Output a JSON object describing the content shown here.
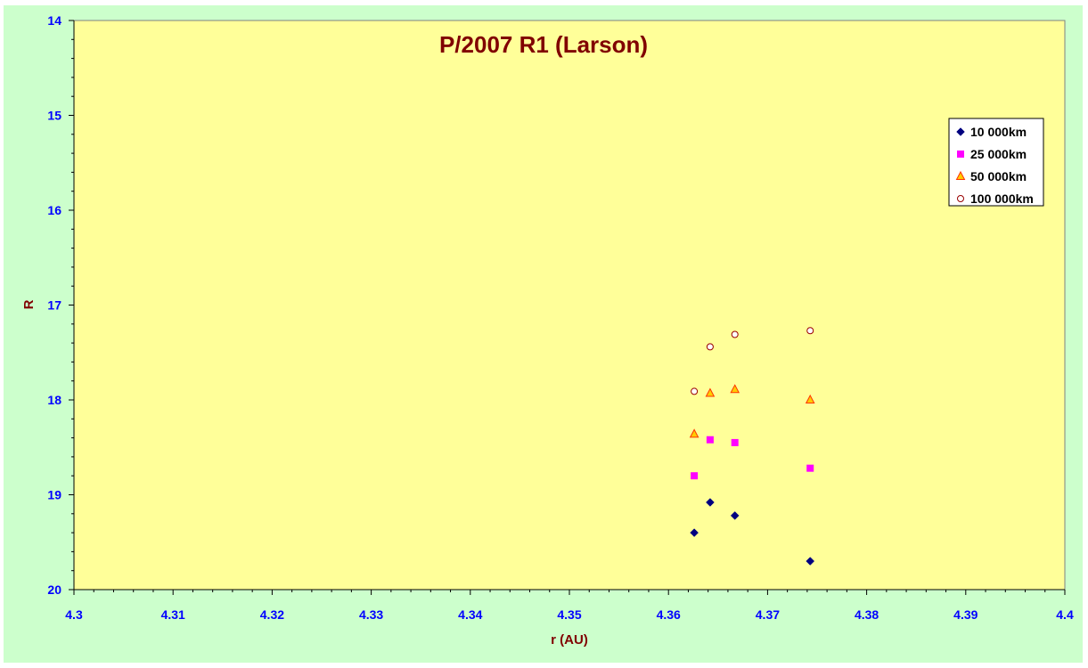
{
  "chart_data": {
    "type": "scatter",
    "title": "P/2007 R1 (Larson)",
    "xlabel": "r (AU)",
    "ylabel": "R",
    "xlim": [
      4.3,
      4.4
    ],
    "ylim": [
      20,
      14
    ],
    "y_inverted": true,
    "x_ticks": [
      "4.3",
      "4.31",
      "4.32",
      "4.33",
      "4.34",
      "4.35",
      "4.36",
      "4.37",
      "4.38",
      "4.39",
      "4.4"
    ],
    "y_ticks": [
      "14",
      "15",
      "16",
      "17",
      "18",
      "19",
      "20"
    ],
    "grid": false,
    "legend_position": "top-right",
    "series": [
      {
        "name": "10 000km",
        "marker": "diamond",
        "color": "#000080",
        "points": [
          [
            4.3626,
            19.4
          ],
          [
            4.3642,
            19.08
          ],
          [
            4.3667,
            19.22
          ],
          [
            4.3743,
            19.7
          ]
        ]
      },
      {
        "name": "25 000km",
        "marker": "square",
        "color": "#ff00ff",
        "points": [
          [
            4.3626,
            18.8
          ],
          [
            4.3642,
            18.42
          ],
          [
            4.3667,
            18.45
          ],
          [
            4.3743,
            18.72
          ]
        ]
      },
      {
        "name": "50 000km",
        "marker": "triangle",
        "color": "#ffcc00",
        "points": [
          [
            4.3626,
            18.36
          ],
          [
            4.3642,
            17.93
          ],
          [
            4.3667,
            17.89
          ],
          [
            4.3743,
            18.0
          ]
        ]
      },
      {
        "name": "100 000km",
        "marker": "circle",
        "color": "#ffffff",
        "points": [
          [
            4.3626,
            17.91
          ],
          [
            4.3642,
            17.44
          ],
          [
            4.3667,
            17.31
          ],
          [
            4.3743,
            17.27
          ]
        ]
      }
    ]
  }
}
